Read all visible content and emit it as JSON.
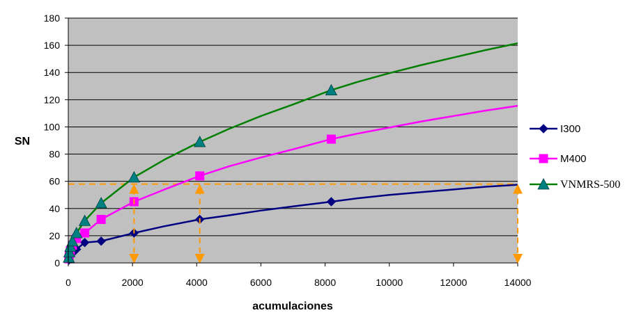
{
  "chart_data": {
    "type": "line",
    "title": "",
    "xlabel": "acumulaciones",
    "ylabel": "SN",
    "xlim": [
      0,
      14000
    ],
    "ylim": [
      0,
      180
    ],
    "xticks": [
      0,
      2000,
      4000,
      6000,
      8000,
      10000,
      12000,
      14000
    ],
    "yticks": [
      0,
      20,
      40,
      60,
      80,
      100,
      120,
      140,
      160,
      180
    ],
    "grid": "horizontal",
    "plot_background": "#c0c0c0",
    "legend_position": "right",
    "series": [
      {
        "name": "I300",
        "color": "#000080",
        "marker": "diamond",
        "marker_points": [
          [
            16,
            2
          ],
          [
            32,
            3
          ],
          [
            64,
            5
          ],
          [
            128,
            7
          ],
          [
            256,
            10
          ],
          [
            512,
            15
          ],
          [
            1024,
            16
          ],
          [
            2048,
            22
          ],
          [
            4096,
            32
          ],
          [
            8192,
            45
          ]
        ],
        "curve_points": [
          [
            1,
            0.5
          ],
          [
            16,
            2
          ],
          [
            32,
            3
          ],
          [
            64,
            5
          ],
          [
            128,
            7
          ],
          [
            256,
            10
          ],
          [
            512,
            15
          ],
          [
            1024,
            16
          ],
          [
            2048,
            22
          ],
          [
            3000,
            27
          ],
          [
            4096,
            32
          ],
          [
            5000,
            35
          ],
          [
            6000,
            38.5
          ],
          [
            7000,
            41.5
          ],
          [
            8192,
            45
          ],
          [
            9000,
            47.5
          ],
          [
            10000,
            50
          ],
          [
            11000,
            52
          ],
          [
            12000,
            54
          ],
          [
            13000,
            56
          ],
          [
            14000,
            57.5
          ],
          [
            14400,
            59
          ]
        ]
      },
      {
        "name": "M400",
        "color": "#ff00ff",
        "marker": "square",
        "marker_points": [
          [
            16,
            3
          ],
          [
            32,
            6
          ],
          [
            64,
            9
          ],
          [
            128,
            13
          ],
          [
            256,
            18
          ],
          [
            512,
            22
          ],
          [
            1024,
            32
          ],
          [
            2048,
            45
          ],
          [
            4096,
            64
          ],
          [
            8192,
            91
          ]
        ],
        "curve_points": [
          [
            1,
            1
          ],
          [
            16,
            3
          ],
          [
            32,
            6
          ],
          [
            64,
            9
          ],
          [
            128,
            13
          ],
          [
            256,
            18
          ],
          [
            512,
            22
          ],
          [
            1024,
            32
          ],
          [
            2048,
            45
          ],
          [
            3000,
            54
          ],
          [
            4096,
            64
          ],
          [
            5000,
            71
          ],
          [
            6000,
            77.5
          ],
          [
            7000,
            83.5
          ],
          [
            8192,
            91
          ],
          [
            9000,
            95
          ],
          [
            10000,
            99.5
          ],
          [
            11000,
            104
          ],
          [
            12000,
            108
          ],
          [
            13000,
            112
          ],
          [
            14000,
            115.5
          ],
          [
            14400,
            118
          ]
        ]
      },
      {
        "name": "VNMRS-500",
        "color": "#008000",
        "marker_color": "#008080",
        "marker": "triangle",
        "marker_points": [
          [
            16,
            4
          ],
          [
            32,
            8
          ],
          [
            64,
            12
          ],
          [
            128,
            16
          ],
          [
            256,
            22
          ],
          [
            512,
            31
          ],
          [
            1024,
            44
          ],
          [
            2048,
            63
          ],
          [
            4096,
            89
          ],
          [
            8192,
            127
          ]
        ],
        "curve_points": [
          [
            1,
            1
          ],
          [
            16,
            4
          ],
          [
            32,
            8
          ],
          [
            64,
            12
          ],
          [
            128,
            16
          ],
          [
            256,
            22
          ],
          [
            512,
            31
          ],
          [
            1024,
            44
          ],
          [
            2048,
            63
          ],
          [
            3000,
            76
          ],
          [
            4096,
            89
          ],
          [
            5000,
            98.5
          ],
          [
            6000,
            108
          ],
          [
            7000,
            116.5
          ],
          [
            8192,
            127
          ],
          [
            9000,
            133
          ],
          [
            10000,
            139.5
          ],
          [
            11000,
            145.5
          ],
          [
            12000,
            151
          ],
          [
            13000,
            156.5
          ],
          [
            14000,
            161.5
          ],
          [
            14400,
            166
          ]
        ]
      }
    ],
    "reference_lines": {
      "color": "#ff9900",
      "horizontal_y": 58,
      "horizontal_x_range": [
        0,
        14000
      ],
      "vertical_markers": [
        2048,
        4096,
        14000
      ]
    }
  }
}
